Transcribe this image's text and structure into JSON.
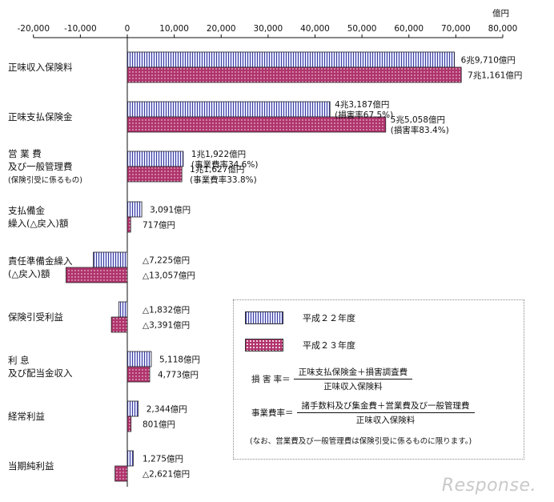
{
  "chart_data": {
    "type": "bar",
    "orientation": "horizontal",
    "unit": "億円",
    "xlim": [
      -20000,
      80000
    ],
    "x_ticks": [
      "-20,000",
      "-10,000",
      "0",
      "10,000",
      "20,000",
      "30,000",
      "40,000",
      "50,000",
      "60,000",
      "70,000",
      "80,000"
    ],
    "series": [
      {
        "name": "平成２２年度",
        "values": [
          69710,
          43187,
          11922,
          3091,
          -7225,
          -1832,
          5118,
          2344,
          1275
        ]
      },
      {
        "name": "平成２３年度",
        "values": [
          71161,
          55058,
          11627,
          717,
          -13057,
          -3391,
          4773,
          801,
          -2621
        ]
      }
    ],
    "categories": [
      {
        "lines": [
          "正味収入保険料"
        ]
      },
      {
        "lines": [
          "正味支払保険金"
        ]
      },
      {
        "lines": [
          "営 業 費",
          "及び一般管理費",
          "(保険引受に係るもの)"
        ]
      },
      {
        "lines": [
          "支払備金",
          "繰入(△戻入)額"
        ]
      },
      {
        "lines": [
          "責任準備金繰入",
          "(△戻入)額"
        ]
      },
      {
        "lines": [
          "保険引受利益"
        ]
      },
      {
        "lines": [
          "利 息",
          "及び配当金収入"
        ]
      },
      {
        "lines": [
          "経常利益"
        ]
      },
      {
        "lines": [
          "当期純利益"
        ]
      }
    ],
    "data_labels": [
      [
        [
          "6兆9,710億円"
        ],
        [
          "7兆1,161億円"
        ]
      ],
      [
        [
          "4兆3,187億円",
          "(損害率67.5%)"
        ],
        [
          "5兆5,058億円",
          "(損害率83.4%)"
        ]
      ],
      [
        [
          "1兆1,922億円",
          "(事業費率34.6%)"
        ],
        [
          "1兆1,627億円",
          "(事業費率33.8%)"
        ]
      ],
      [
        [
          "3,091億円"
        ],
        [
          "717億円"
        ]
      ],
      [
        [
          "△7,225億円"
        ],
        [
          "△13,057億円"
        ]
      ],
      [
        [
          "△1,832億円"
        ],
        [
          "△3,391億円"
        ]
      ],
      [
        [
          "5,118億円"
        ],
        [
          "4,773億円"
        ]
      ],
      [
        [
          "2,344億円"
        ],
        [
          "801億円"
        ]
      ],
      [
        [
          "1,275億円"
        ],
        [
          "△2,621億円"
        ]
      ]
    ],
    "grid": false,
    "legend_position": "bottom-right"
  },
  "legend": {
    "items": [
      "平成２２年度",
      "平成２３年度"
    ],
    "loss_ratio": {
      "label": "損 害 率＝",
      "numerator": "正味支払保険金＋損害調査費",
      "denominator": "正味収入保険料"
    },
    "expense_ratio": {
      "label": "事業費率＝",
      "numerator": "諸手数料及び集金費＋営業費及び一般管理費",
      "denominator": "正味収入保険料"
    },
    "note": "(なお、営業費及び一般管理費は保険引受に係るものに限ります。)"
  },
  "colors": {
    "h22_fill": "#e3e5ff",
    "h22_stripe": "#3a3d9c",
    "h23_fill": "#b0336c",
    "h23_dot": "#ffffff"
  },
  "watermark": "Response."
}
